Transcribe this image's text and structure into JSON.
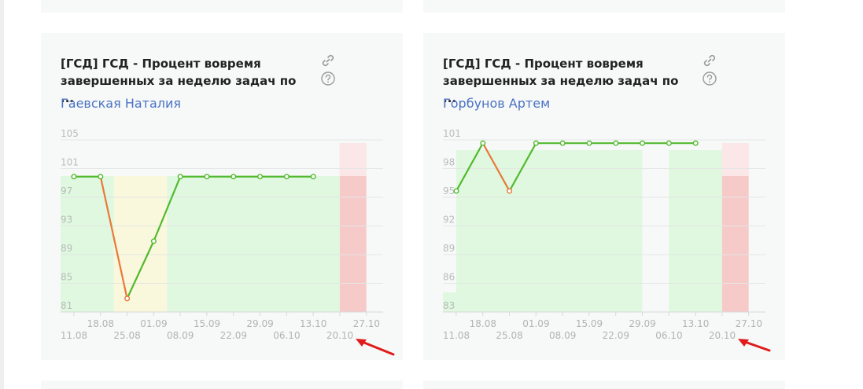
{
  "cards": [
    {
      "title": "[ГСД] ГСД - Процент вовремя\nзавершенных за неделю задач по ...",
      "person": "Гаевская Наталия",
      "link_icon": "link-icon",
      "help_icon": "question-circle-icon",
      "chart_data": {
        "type": "line",
        "y_ticks": [
          "105",
          "101",
          "97",
          "93",
          "89",
          "85",
          "81"
        ],
        "x_ticks_upper": [
          "18.08",
          "01.09",
          "15.09",
          "29.09",
          "13.10",
          "27.10"
        ],
        "x_ticks_lower": [
          "11.08",
          "25.08",
          "08.09",
          "22.09",
          "06.10",
          "20.10"
        ],
        "x": [
          "11.08",
          "18.08",
          "25.08",
          "01.09",
          "08.09",
          "15.09",
          "22.09",
          "29.09",
          "06.10",
          "13.10"
        ],
        "values": [
          99,
          99,
          82,
          90,
          99,
          99,
          99,
          99,
          99,
          99
        ],
        "ylim": [
          80,
          105
        ],
        "zone_colors": {
          "good": "#dff8df",
          "warning": "#faf8dc",
          "bad": "#f7c2c2"
        },
        "line_colors": {
          "up": "#52b92e",
          "down": "#e8793a"
        }
      }
    },
    {
      "title": "[ГСД] ГСД - Процент вовремя\nзавершенных за неделю задач по ...",
      "person": "Горбунов Артем",
      "link_icon": "link-icon",
      "help_icon": "question-circle-icon",
      "chart_data": {
        "type": "line",
        "y_ticks": [
          "101",
          "98",
          "95",
          "92",
          "89",
          "86",
          "83"
        ],
        "x_ticks_upper": [
          "18.08",
          "01.09",
          "15.09",
          "29.09",
          "13.10",
          "27.10"
        ],
        "x_ticks_lower": [
          "11.08",
          "25.08",
          "08.09",
          "22.09",
          "06.10",
          "20.10"
        ],
        "x": [
          "11.08",
          "18.08",
          "25.08",
          "01.09",
          "08.09",
          "15.09",
          "22.09",
          "29.09",
          "06.10",
          "13.10"
        ],
        "values": [
          95,
          100,
          95,
          100,
          100,
          100,
          100,
          100,
          100,
          100
        ],
        "ylim": [
          82,
          101
        ],
        "zone_colors": {
          "good": "#dff8df",
          "warning": "#faf8dc",
          "bad": "#f7c2c2"
        },
        "line_colors": {
          "up": "#52b92e",
          "down": "#e8793a"
        }
      }
    }
  ],
  "annotation": {
    "arrow_color": "#e01b1b"
  }
}
